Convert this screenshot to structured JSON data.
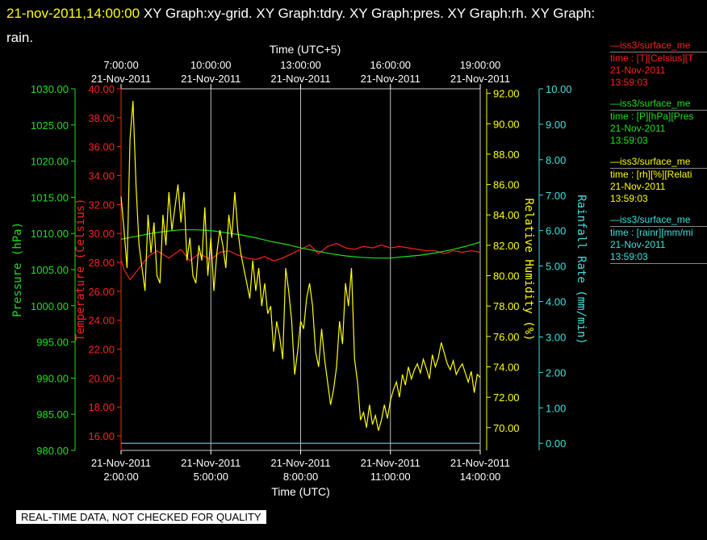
{
  "header": {
    "timestamp": "21-nov-2011,14:00:00",
    "title": "XY Graph:xy-grid.  XY Graph:tdry.  XY Graph:pres.  XY Graph:rh.  XY Graph:",
    "title_wrap": "rain."
  },
  "legend": [
    {
      "color": "#ff2020",
      "name": "—iss3/surface_me",
      "desc": "time : [T][Celsius][T",
      "date": "21-Nov-2011",
      "time": "13:59:03"
    },
    {
      "color": "#20e020",
      "name": "—iss3/surface_me",
      "desc": "time : [P][hPa][Pres",
      "date": "21-Nov-2011",
      "time": "13:59:03"
    },
    {
      "color": "#ffff00",
      "name": "—iss3/surface_me",
      "desc": "time : [rh][%][Relati",
      "date": "21-Nov-2011",
      "time": "13:59:03"
    },
    {
      "color": "#40e0e0",
      "name": "—iss3/surface_me",
      "desc": "time : [rainr][mm/mi",
      "date": "21-Nov-2011",
      "time": "13:59:03"
    }
  ],
  "footer": {
    "quality": "REAL-TIME DATA, NOT CHECKED FOR QUALITY"
  },
  "chart_data": {
    "type": "line",
    "grid": true,
    "x_bottom": {
      "label": "Time (UTC)",
      "range": [
        2,
        14
      ],
      "ticks": [
        {
          "v": 2,
          "date": "21-Nov-2011",
          "time": "2:00:00"
        },
        {
          "v": 5,
          "date": "21-Nov-2011",
          "time": "5:00:00"
        },
        {
          "v": 8,
          "date": "21-Nov-2011",
          "time": "8:00:00"
        },
        {
          "v": 11,
          "date": "21-Nov-2011",
          "time": "11:00:00"
        },
        {
          "v": 14,
          "date": "21-Nov-2011",
          "time": "14:00:00"
        }
      ]
    },
    "x_top": {
      "label": "Time (UTC+5)",
      "ticks": [
        {
          "v": 7,
          "date": "21-Nov-2011",
          "time": "7:00:00"
        },
        {
          "v": 10,
          "date": "21-Nov-2011",
          "time": "10:00:00"
        },
        {
          "v": 13,
          "date": "21-Nov-2011",
          "time": "13:00:00"
        },
        {
          "v": 16,
          "date": "21-Nov-2011",
          "time": "16:00:00"
        },
        {
          "v": 19,
          "date": "21-Nov-2011",
          "time": "19:00:00"
        }
      ]
    },
    "axes": {
      "pressure": {
        "label": "Pressure (hPa)",
        "color": "#20e020",
        "range": [
          980,
          1030
        ],
        "ticks": [
          "980.00",
          "985.00",
          "990.00",
          "995.00",
          "1000.00",
          "1005.00",
          "1010.00",
          "1015.00",
          "1020.00",
          "1025.00",
          "1030.00"
        ]
      },
      "temperature": {
        "label": "Temperature (Celsius)",
        "color": "#ff2020",
        "range": [
          15,
          40
        ],
        "ticks": [
          "16.00",
          "18.00",
          "20.00",
          "22.00",
          "24.00",
          "26.00",
          "28.00",
          "30.00",
          "32.00",
          "34.00",
          "36.00",
          "38.00",
          "40.00"
        ]
      },
      "humidity": {
        "label": "Relative Humidity (%)",
        "color": "#ffff00",
        "range": [
          68.5,
          92.3
        ],
        "ticks": [
          "70.00",
          "72.00",
          "74.00",
          "76.00",
          "78.00",
          "80.00",
          "82.00",
          "84.00",
          "86.00",
          "88.00",
          "90.00",
          "92.00"
        ]
      },
      "rain": {
        "label": "Rainfall Rate (mm/min)",
        "color": "#40e0e0",
        "range": [
          -0.2,
          10
        ],
        "ticks": [
          "0.00",
          "1.00",
          "2.00",
          "3.00",
          "4.00",
          "5.00",
          "6.00",
          "7.00",
          "8.00",
          "9.00",
          "10.00"
        ]
      }
    },
    "series": [
      {
        "name": "Temperature",
        "axis": "temperature",
        "color": "#ff2020",
        "x": [
          2,
          2.1,
          2.3,
          2.6,
          2.9,
          3.2,
          3.6,
          4.0,
          4.3,
          4.6,
          5.0,
          5.3,
          5.6,
          5.9,
          6.2,
          6.5,
          6.8,
          7.1,
          7.4,
          7.7,
          8.0,
          8.3,
          8.6,
          8.9,
          9.2,
          9.5,
          9.8,
          10.1,
          10.4,
          10.7,
          11.0,
          11.3,
          11.6,
          11.9,
          12.2,
          12.5,
          12.8,
          13.1,
          13.4,
          13.7,
          14.0
        ],
        "y": [
          28.2,
          27.5,
          26.8,
          27.6,
          28.4,
          28.8,
          28.3,
          28.9,
          28.1,
          28.6,
          28.2,
          28.7,
          28.8,
          28.5,
          28.3,
          28.2,
          28.4,
          28.1,
          28.3,
          28.6,
          28.9,
          29.2,
          28.6,
          29.1,
          29.3,
          29.0,
          28.9,
          29.1,
          29.0,
          29.2,
          29.0,
          29.1,
          29.0,
          28.9,
          28.8,
          28.8,
          28.6,
          28.8,
          28.7,
          28.8,
          28.7
        ]
      },
      {
        "name": "Pressure",
        "axis": "pressure",
        "color": "#20e020",
        "x": [
          2,
          2.5,
          3,
          3.5,
          4,
          4.5,
          5,
          5.5,
          6,
          6.5,
          7,
          7.5,
          8,
          8.5,
          9,
          9.5,
          10,
          10.5,
          11,
          11.5,
          12,
          12.5,
          13,
          13.5,
          14
        ],
        "y": [
          1009.2,
          1009.6,
          1010.0,
          1010.3,
          1010.5,
          1010.5,
          1010.4,
          1010.1,
          1009.8,
          1009.4,
          1008.9,
          1008.5,
          1008.0,
          1007.6,
          1007.2,
          1006.9,
          1006.7,
          1006.6,
          1006.6,
          1006.8,
          1007.0,
          1007.3,
          1007.7,
          1008.2,
          1008.8
        ]
      },
      {
        "name": "Relative Humidity",
        "axis": "humidity",
        "color": "#ffff00",
        "x": [
          2,
          2.1,
          2.2,
          2.3,
          2.4,
          2.5,
          2.6,
          2.7,
          2.8,
          2.9,
          3.0,
          3.1,
          3.2,
          3.3,
          3.4,
          3.5,
          3.6,
          3.7,
          3.8,
          3.9,
          4.0,
          4.1,
          4.2,
          4.3,
          4.4,
          4.5,
          4.6,
          4.7,
          4.8,
          4.9,
          5.0,
          5.1,
          5.2,
          5.3,
          5.4,
          5.5,
          5.6,
          5.7,
          5.8,
          5.9,
          6.0,
          6.1,
          6.2,
          6.3,
          6.4,
          6.5,
          6.6,
          6.7,
          6.8,
          6.9,
          7.0,
          7.1,
          7.2,
          7.3,
          7.4,
          7.5,
          7.6,
          7.7,
          7.8,
          7.9,
          8.0,
          8.1,
          8.2,
          8.3,
          8.4,
          8.5,
          8.6,
          8.7,
          8.8,
          8.9,
          9.0,
          9.1,
          9.2,
          9.3,
          9.4,
          9.5,
          9.6,
          9.7,
          9.8,
          9.9,
          10.0,
          10.1,
          10.2,
          10.3,
          10.4,
          10.5,
          10.6,
          10.7,
          10.8,
          10.9,
          11.0,
          11.1,
          11.2,
          11.3,
          11.4,
          11.5,
          11.6,
          11.7,
          11.8,
          11.9,
          12.0,
          12.1,
          12.2,
          12.3,
          12.4,
          12.5,
          12.6,
          12.7,
          12.8,
          12.9,
          13.0,
          13.1,
          13.2,
          13.3,
          13.4,
          13.5,
          13.6,
          13.7,
          13.8,
          13.9,
          14.0
        ],
        "y": [
          85.2,
          83.0,
          80.5,
          89.0,
          91.5,
          86.0,
          82.0,
          80.5,
          79.0,
          84.0,
          81.5,
          83.5,
          80.0,
          79.5,
          84.0,
          82.0,
          85.5,
          83.0,
          84.5,
          86.0,
          83.5,
          85.5,
          81.0,
          82.5,
          80.0,
          79.5,
          82.0,
          81.0,
          84.5,
          80.0,
          82.5,
          79.0,
          81.5,
          83.0,
          82.0,
          80.5,
          84.0,
          82.5,
          85.5,
          83.0,
          81.5,
          80.5,
          79.5,
          78.5,
          81.0,
          79.0,
          80.5,
          78.0,
          79.5,
          77.5,
          78.0,
          75.0,
          77.0,
          76.0,
          74.5,
          80.5,
          79.0,
          77.0,
          73.5,
          75.0,
          77.0,
          76.5,
          78.5,
          79.5,
          78.0,
          75.0,
          74.0,
          76.5,
          74.5,
          73.0,
          71.5,
          72.5,
          74.0,
          77.0,
          75.5,
          79.5,
          78.0,
          80.5,
          74.5,
          73.0,
          70.5,
          71.0,
          70.0,
          71.5,
          70.2,
          70.8,
          69.8,
          70.5,
          71.5,
          70.6,
          71.8,
          72.5,
          73.0,
          72.0,
          73.5,
          72.8,
          74.0,
          73.2,
          73.8,
          74.2,
          73.6,
          74.5,
          73.9,
          73.2,
          74.8,
          74.0,
          74.6,
          75.6,
          74.9,
          74.2,
          73.8,
          74.4,
          73.5,
          73.9,
          74.2,
          73.6,
          73.0,
          73.7,
          72.3,
          73.5,
          73.3
        ]
      },
      {
        "name": "Rainfall Rate",
        "axis": "rain",
        "color": "#40e0e0",
        "x": [
          2,
          14
        ],
        "y": [
          0,
          0
        ]
      }
    ]
  }
}
